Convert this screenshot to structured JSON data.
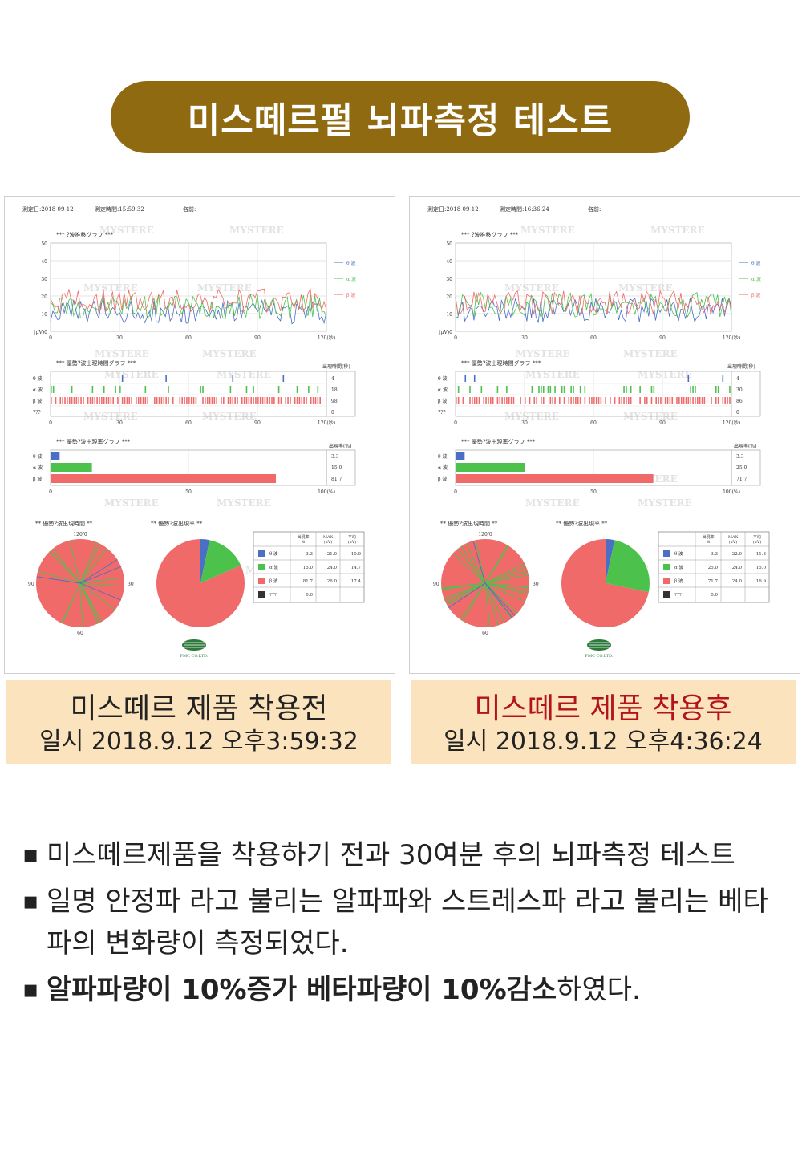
{
  "banner": {
    "title": "미스떼르펄 뇌파측정 테스트"
  },
  "reports": [
    {
      "header": {
        "date": "測定日:2018-09-12",
        "time": "測定時間:15:59:32",
        "name": "名前:"
      },
      "trend": {
        "title": "*** ?波推移グラフ ***",
        "yticks": [
          "50",
          "40",
          "30",
          "20",
          "10",
          "(μV)0"
        ],
        "xticks": [
          "0",
          "30",
          "60",
          "90",
          "120(秒)"
        ],
        "legend": [
          "θ 波",
          "α 波",
          "β 波"
        ]
      },
      "time_graph": {
        "title": "*** 優勢?波出現時間グラフ ***",
        "unit": "出現時間(秒)",
        "rows": [
          "θ 波",
          "α 波",
          "β 波",
          "???"
        ],
        "values": [
          "4",
          "18",
          "98",
          "0"
        ],
        "xticks": [
          "0",
          "30",
          "60",
          "90",
          "120(秒)"
        ]
      },
      "rate_graph": {
        "title": "*** 優勢?波出現率グラフ ***",
        "unit": "出現率(%)",
        "rows": [
          "θ 波",
          "α 波",
          "β 波"
        ],
        "values": [
          "3.3",
          "15.0",
          "81.7"
        ],
        "xticks": [
          "0",
          "50",
          "100(%)"
        ]
      },
      "pie_time": {
        "title": "** 優勢?波出現時間 **",
        "top": "120/0",
        "right": "30",
        "bottom": "60",
        "left": "90"
      },
      "pie_rate": {
        "title": "** 優勢?波出現率 **"
      },
      "table": {
        "headers": [
          "出現率 %",
          "MAX (μV)",
          "平均 (μV)"
        ],
        "rows": [
          {
            "label": "θ 波",
            "rate": "3.3",
            "max": "21.0",
            "avg": "10.9"
          },
          {
            "label": "α 波",
            "rate": "15.0",
            "max": "24.0",
            "avg": "14.7"
          },
          {
            "label": "β 波",
            "rate": "81.7",
            "max": "26.0",
            "avg": "17.4"
          },
          {
            "label": "???",
            "rate": "0.0",
            "max": "",
            "avg": ""
          }
        ]
      },
      "logo_text": "PMC CO.LTD."
    },
    {
      "header": {
        "date": "測定日:2018-09-12",
        "time": "測定時間:16:36:24",
        "name": "名前:"
      },
      "trend": {
        "title": "*** ?波推移グラフ ***",
        "yticks": [
          "50",
          "40",
          "30",
          "20",
          "10",
          "(μV)0"
        ],
        "xticks": [
          "0",
          "30",
          "60",
          "90",
          "120(秒)"
        ],
        "legend": [
          "θ 波",
          "α 波",
          "β 波"
        ]
      },
      "time_graph": {
        "title": "*** 優勢?波出現時間グラフ ***",
        "unit": "出現時間(秒)",
        "rows": [
          "θ 波",
          "α 波",
          "β 波",
          "???"
        ],
        "values": [
          "4",
          "30",
          "86",
          "0"
        ],
        "xticks": [
          "0",
          "30",
          "60",
          "90",
          "120(秒)"
        ]
      },
      "rate_graph": {
        "title": "*** 優勢?波出現率グラフ ***",
        "unit": "出現率(%)",
        "rows": [
          "θ 波",
          "α 波",
          "β 波"
        ],
        "values": [
          "3.3",
          "25.0",
          "71.7"
        ],
        "xticks": [
          "0",
          "50",
          "100(%)"
        ]
      },
      "pie_time": {
        "title": "** 優勢?波出現時間 **",
        "top": "120/0",
        "right": "30",
        "bottom": "60",
        "left": "90"
      },
      "pie_rate": {
        "title": "** 優勢?波出現率 **"
      },
      "table": {
        "headers": [
          "出現率 %",
          "MAX (μV)",
          "平均 (μV)"
        ],
        "rows": [
          {
            "label": "θ 波",
            "rate": "3.3",
            "max": "22.0",
            "avg": "11.3"
          },
          {
            "label": "α 波",
            "rate": "25.0",
            "max": "24.0",
            "avg": "15.0"
          },
          {
            "label": "β 波",
            "rate": "71.7",
            "max": "24.0",
            "avg": "16.9"
          },
          {
            "label": "???",
            "rate": "0.0",
            "max": "",
            "avg": ""
          }
        ]
      },
      "logo_text": "PMC CO.LTD."
    }
  ],
  "watermark": "MYSTERE",
  "captions": [
    {
      "title": "미스떼르 제품 착용전",
      "date": "일시 2018.9.12 오후3:59:32"
    },
    {
      "title": "미스떼르 제품 착용후",
      "date": "일시 2018.9.12 오후4:36:24"
    }
  ],
  "notes": {
    "bullet": "▪",
    "n1": "미스떼르제품을 착용하기 전과 30여분 후의 뇌파측정 테스트",
    "n2": "일명 안정파 라고 불리는 알파파와 스트레스파 라고 불리는 베타파의 변화량이 측정되었다.",
    "n3_bold": "알파파량이 10%증가 베타파량이 10%감소",
    "n3_rest": "하였다."
  },
  "colors": {
    "brown": "#8f6a10",
    "theta": "#4a6fc4",
    "alpha": "#4cc24c",
    "beta": "#f06a6a",
    "unknown": "#333333",
    "caption_bg": "#fbe3bd",
    "red_title": "#b3141b"
  }
}
